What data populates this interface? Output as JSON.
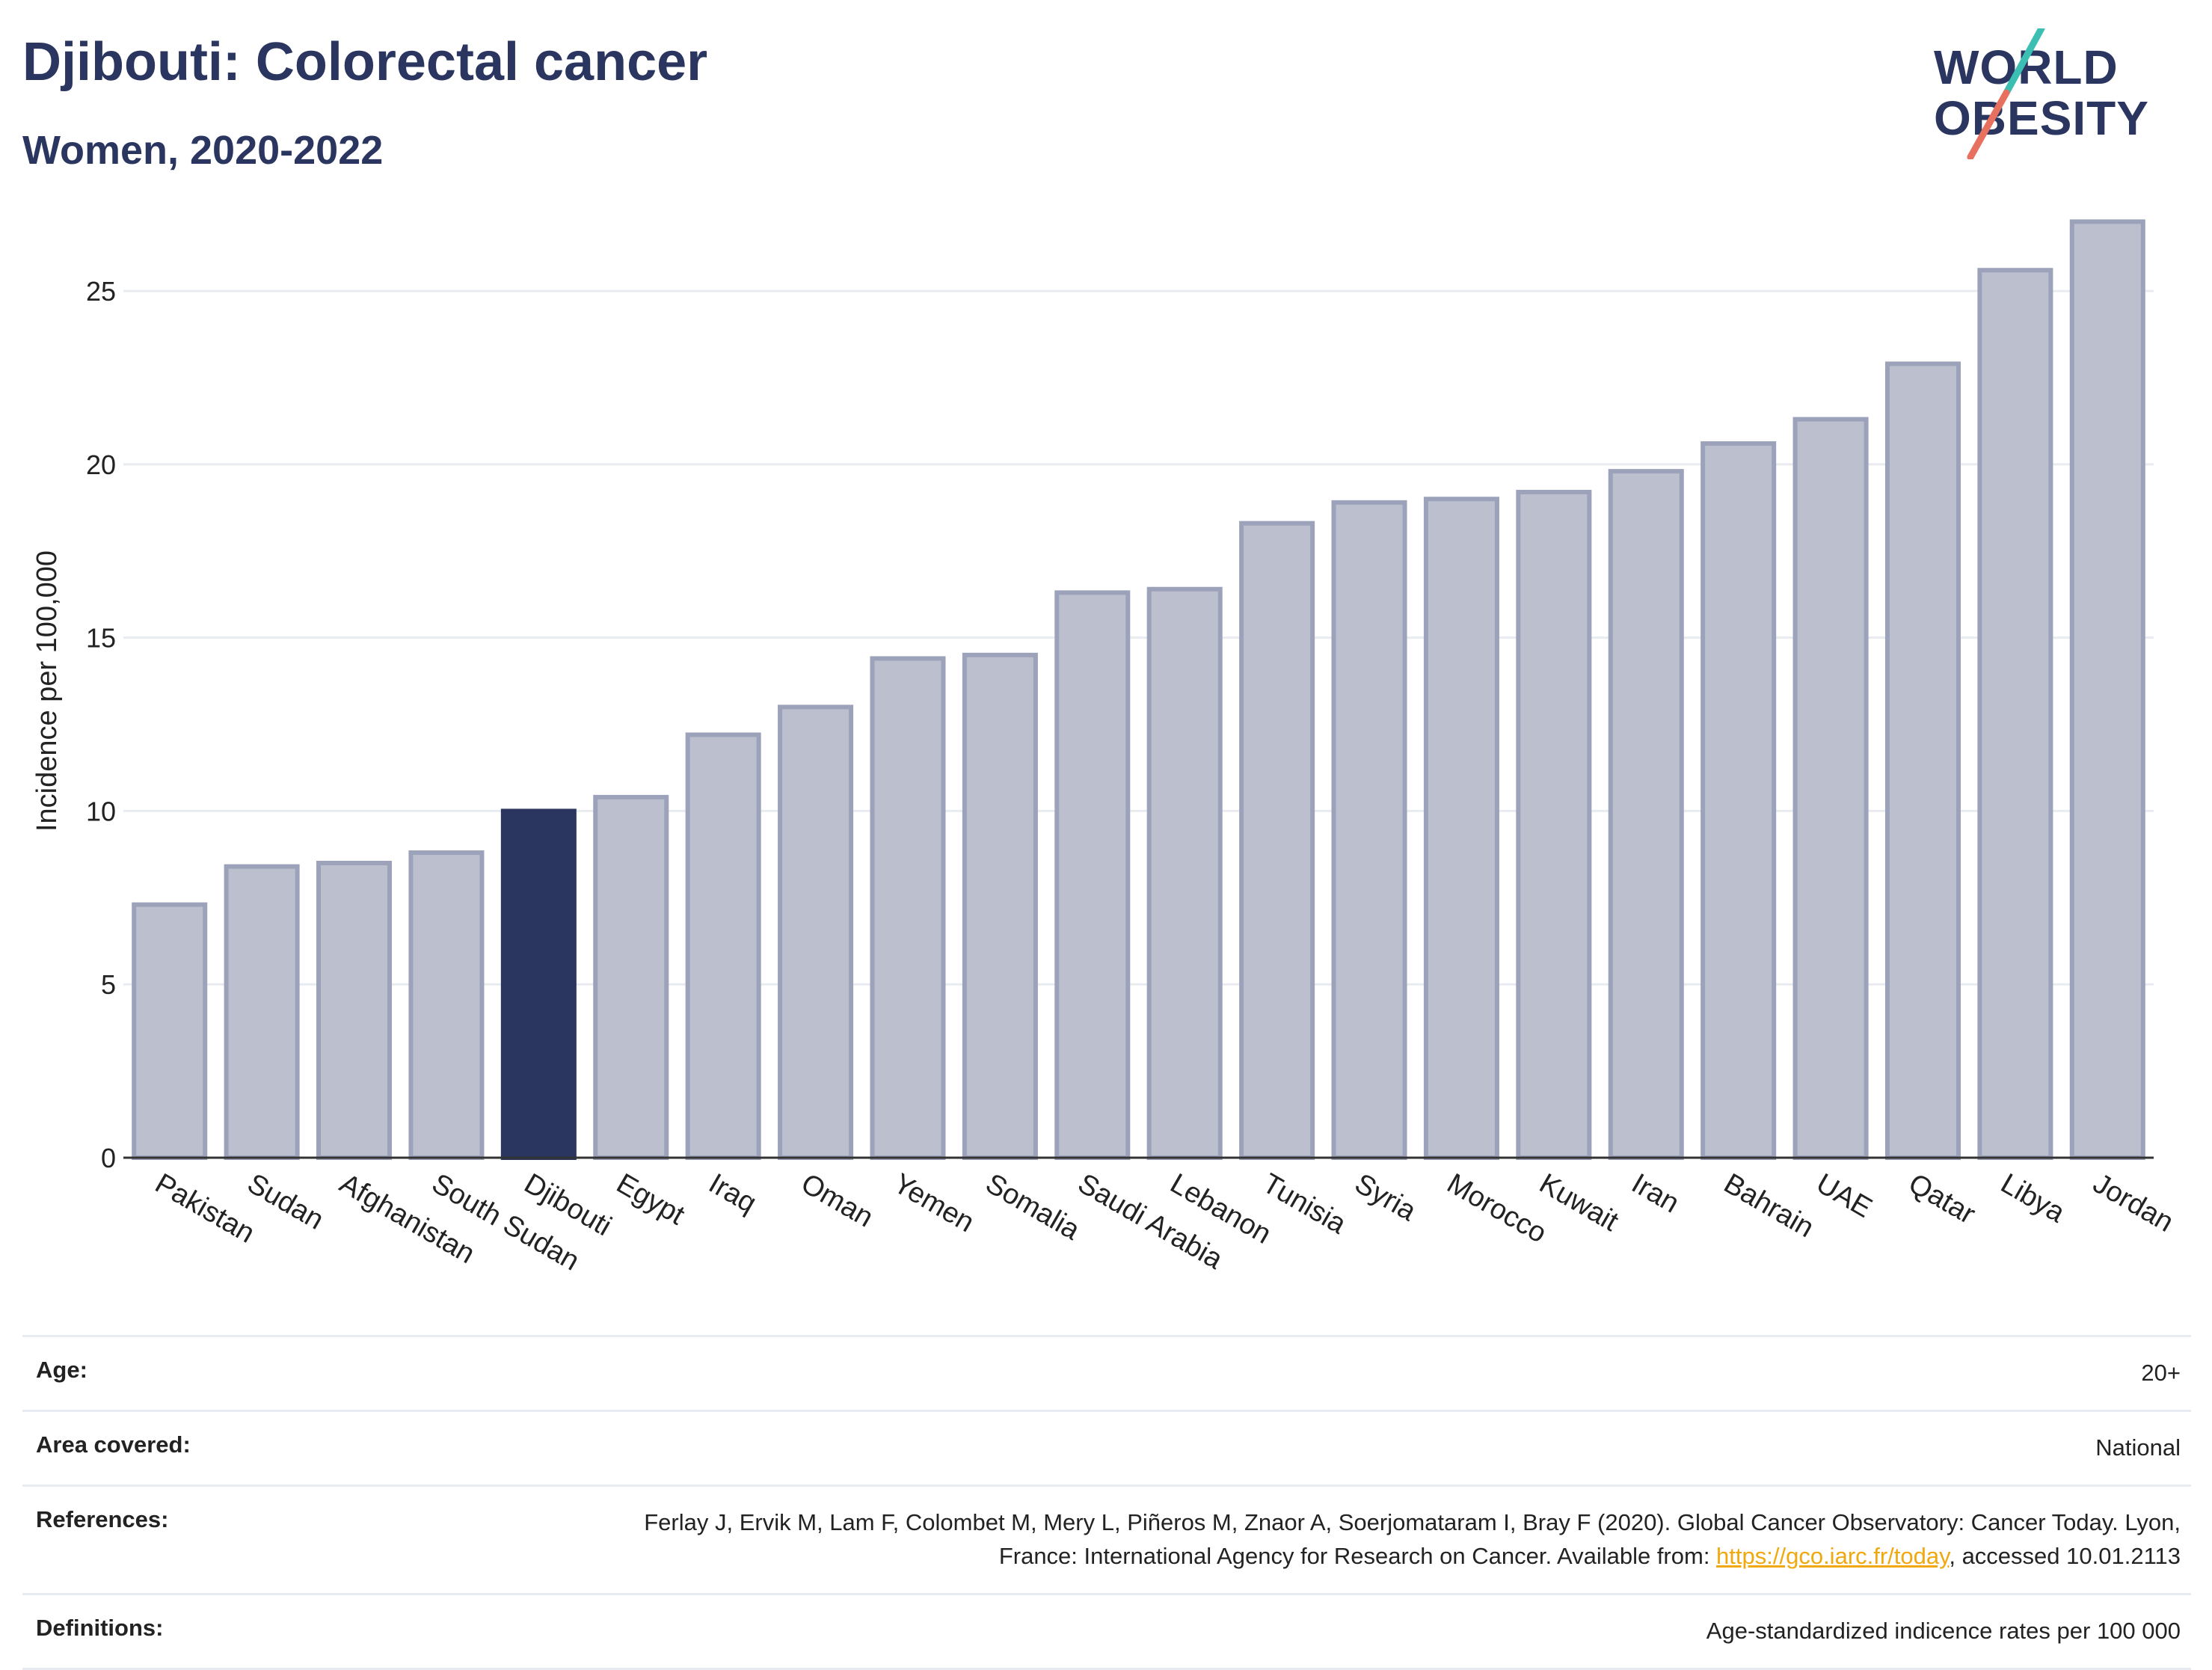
{
  "header": {
    "title": "Djibouti: Colorectal cancer",
    "subtitle": "Women, 2020-2022"
  },
  "logo": {
    "line1": "WORLD",
    "line2": "OBESITY"
  },
  "colors": {
    "highlight": "#2a3560",
    "bar_fill": "#bcc0ce",
    "bar_stroke": "#9ca2b9",
    "grid": "#e8ebf0",
    "logo_teal": "#3bbfb3",
    "logo_coral": "#e8705f"
  },
  "chart_data": {
    "type": "bar",
    "categories": [
      "Pakistan",
      "Sudan",
      "Afghanistan",
      "South Sudan",
      "Djibouti",
      "Egypt",
      "Iraq",
      "Oman",
      "Yemen",
      "Somalia",
      "Saudi Arabia",
      "Lebanon",
      "Tunisia",
      "Syria",
      "Morocco",
      "Kuwait",
      "Iran",
      "Bahrain",
      "UAE",
      "Qatar",
      "Libya",
      "Jordan"
    ],
    "values": [
      7.3,
      8.4,
      8.5,
      8.8,
      10.0,
      10.4,
      12.2,
      13.0,
      14.4,
      14.5,
      16.3,
      16.4,
      18.3,
      18.9,
      19.0,
      19.2,
      19.8,
      20.6,
      21.3,
      22.9,
      25.6,
      27.0
    ],
    "highlight": "Djibouti",
    "ylabel": "Incidence per 100,000",
    "xlabel": "",
    "ylim": [
      0,
      28
    ],
    "yticks": [
      0,
      5,
      10,
      15,
      20,
      25
    ],
    "grid": true
  },
  "table": {
    "age_label": "Age:",
    "age_value": "20+",
    "area_label": "Area covered:",
    "area_value": "National",
    "references_label": "References:",
    "references_text": "Ferlay J, Ervik M, Lam F, Colombet M, Mery L, Piñeros M, Znaor A, Soerjomataram I, Bray F (2020). Global Cancer Observatory: Cancer Today. Lyon, France: International Agency for Research on Cancer. Available from: ",
    "references_link": "https://gco.iarc.fr/today",
    "references_suffix": ", accessed 10.01.2113",
    "definitions_label": "Definitions:",
    "definitions_value": "Age-standardized indicence rates per 100 000"
  }
}
